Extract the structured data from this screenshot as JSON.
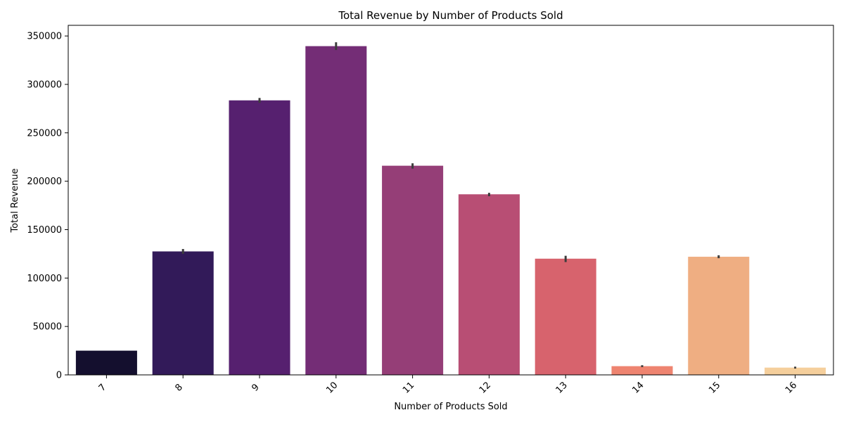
{
  "chart_data": {
    "type": "bar",
    "title": "Total Revenue by Number of Products Sold",
    "xlabel": "Number of Products Sold",
    "ylabel": "Total Revenue",
    "categories": [
      "7",
      "8",
      "9",
      "10",
      "11",
      "12",
      "13",
      "14",
      "15",
      "16"
    ],
    "values": [
      25000,
      127500,
      283500,
      339500,
      216000,
      186500,
      120000,
      9000,
      122000,
      7500
    ],
    "error_low": [
      25000,
      125000,
      281000,
      335500,
      213000,
      184500,
      116500,
      8000,
      120500,
      6500
    ],
    "error_high": [
      25000,
      130000,
      286000,
      343500,
      218500,
      188000,
      123000,
      10000,
      123500,
      8500
    ],
    "colors": [
      "#140f2e",
      "#321a59",
      "#56206f",
      "#742d76",
      "#953e77",
      "#b84e74",
      "#d7636d",
      "#ee8470",
      "#efae82",
      "#f5cf9c"
    ],
    "ylim": [
      0,
      361000
    ],
    "yticks": [
      0,
      50000,
      100000,
      150000,
      200000,
      250000,
      300000,
      350000
    ],
    "grid": false,
    "legend": "none",
    "xtick_rotation": 45
  }
}
